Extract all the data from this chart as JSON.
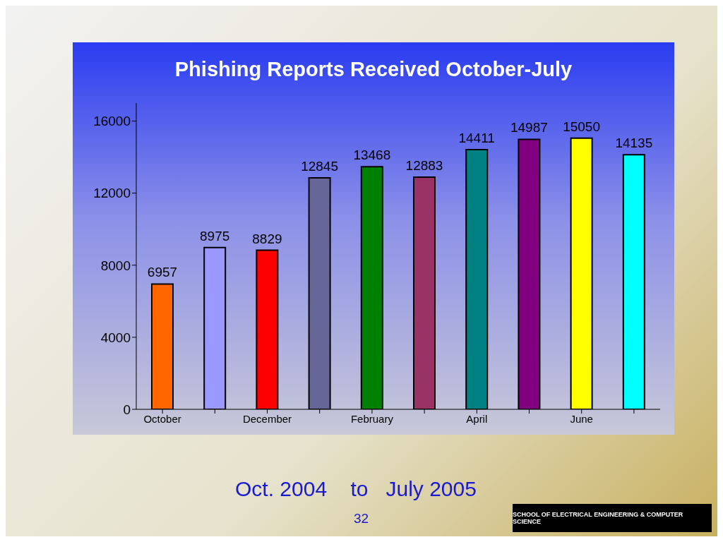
{
  "chart_data": {
    "type": "bar",
    "title": "Phishing Reports Received October-July",
    "categories": [
      "October",
      null,
      "December",
      null,
      "February",
      null,
      "April",
      null,
      "June",
      null
    ],
    "values": [
      6957,
      8975,
      8829,
      12845,
      13468,
      12883,
      14411,
      14987,
      15050,
      14135
    ],
    "colors": [
      "#ff6600",
      "#9999ff",
      "#ff0000",
      "#666699",
      "#008000",
      "#993366",
      "#008080",
      "#800080",
      "#ffff00",
      "#00ffff"
    ],
    "ylim": [
      0,
      17000
    ],
    "yticks": [
      0,
      4000,
      8000,
      12000,
      16000
    ],
    "grid": false,
    "legend": false,
    "data_labels": true,
    "annotations": [
      "Oct. 2004    to   July 2005",
      "32",
      "SCHOOL OF ELECTRICAL ENGINEERING & COMPUTER SCIENCE"
    ]
  }
}
